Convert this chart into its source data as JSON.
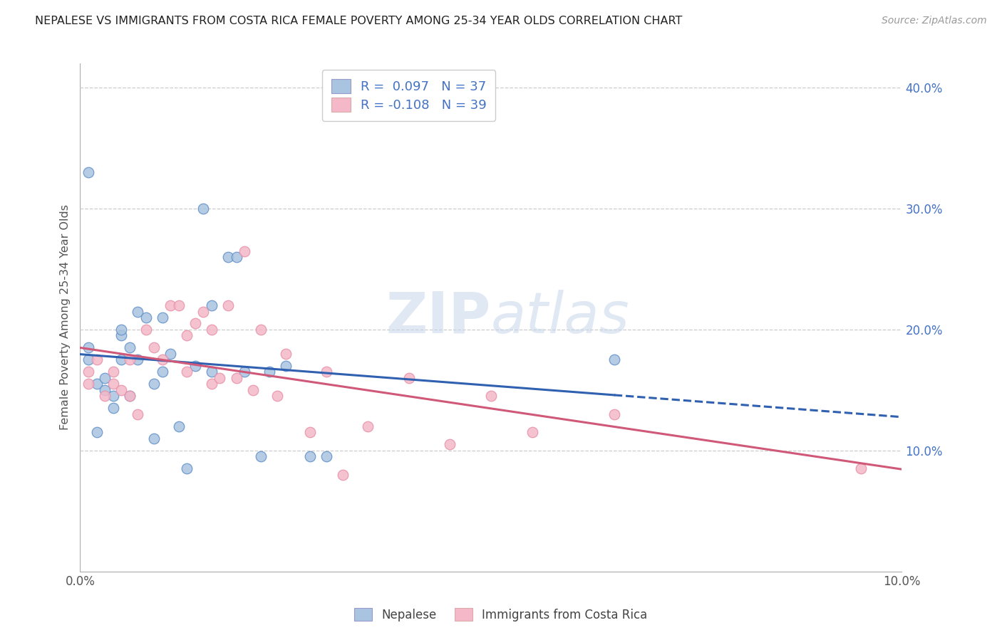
{
  "title": "NEPALESE VS IMMIGRANTS FROM COSTA RICA FEMALE POVERTY AMONG 25-34 YEAR OLDS CORRELATION CHART",
  "source": "Source: ZipAtlas.com",
  "ylabel": "Female Poverty Among 25-34 Year Olds",
  "xlim": [
    0.0,
    0.1
  ],
  "ylim": [
    0.0,
    0.42
  ],
  "R_nepalese": 0.097,
  "N_nepalese": 37,
  "R_costarica": -0.108,
  "N_costarica": 39,
  "color_nepalese": "#a8c4e0",
  "color_costarica": "#f4b8c8",
  "edge_nepalese": "#6090c8",
  "edge_costarica": "#e890a8",
  "line_color_nepalese": "#3060b0",
  "line_color_costarica": "#d05878",
  "watermark_color": "#c8d8ea",
  "nepalese_x": [
    0.001,
    0.001,
    0.002,
    0.002,
    0.003,
    0.003,
    0.004,
    0.004,
    0.005,
    0.005,
    0.005,
    0.006,
    0.006,
    0.007,
    0.007,
    0.008,
    0.009,
    0.009,
    0.01,
    0.01,
    0.011,
    0.012,
    0.013,
    0.014,
    0.015,
    0.016,
    0.016,
    0.018,
    0.019,
    0.02,
    0.022,
    0.023,
    0.025,
    0.028,
    0.03,
    0.065,
    0.001
  ],
  "nepalese_y": [
    0.175,
    0.185,
    0.155,
    0.115,
    0.16,
    0.15,
    0.135,
    0.145,
    0.195,
    0.175,
    0.2,
    0.145,
    0.185,
    0.175,
    0.215,
    0.21,
    0.155,
    0.11,
    0.165,
    0.21,
    0.18,
    0.12,
    0.085,
    0.17,
    0.3,
    0.22,
    0.165,
    0.26,
    0.26,
    0.165,
    0.095,
    0.165,
    0.17,
    0.095,
    0.095,
    0.175,
    0.33
  ],
  "costarica_x": [
    0.001,
    0.001,
    0.002,
    0.003,
    0.004,
    0.004,
    0.005,
    0.006,
    0.006,
    0.007,
    0.008,
    0.009,
    0.01,
    0.011,
    0.012,
    0.013,
    0.013,
    0.014,
    0.015,
    0.016,
    0.016,
    0.017,
    0.018,
    0.019,
    0.02,
    0.021,
    0.022,
    0.024,
    0.025,
    0.028,
    0.03,
    0.032,
    0.035,
    0.04,
    0.045,
    0.05,
    0.055,
    0.065,
    0.095
  ],
  "costarica_y": [
    0.165,
    0.155,
    0.175,
    0.145,
    0.155,
    0.165,
    0.15,
    0.145,
    0.175,
    0.13,
    0.2,
    0.185,
    0.175,
    0.22,
    0.22,
    0.195,
    0.165,
    0.205,
    0.215,
    0.2,
    0.155,
    0.16,
    0.22,
    0.16,
    0.265,
    0.15,
    0.2,
    0.145,
    0.18,
    0.115,
    0.165,
    0.08,
    0.12,
    0.16,
    0.105,
    0.145,
    0.115,
    0.13,
    0.085
  ]
}
